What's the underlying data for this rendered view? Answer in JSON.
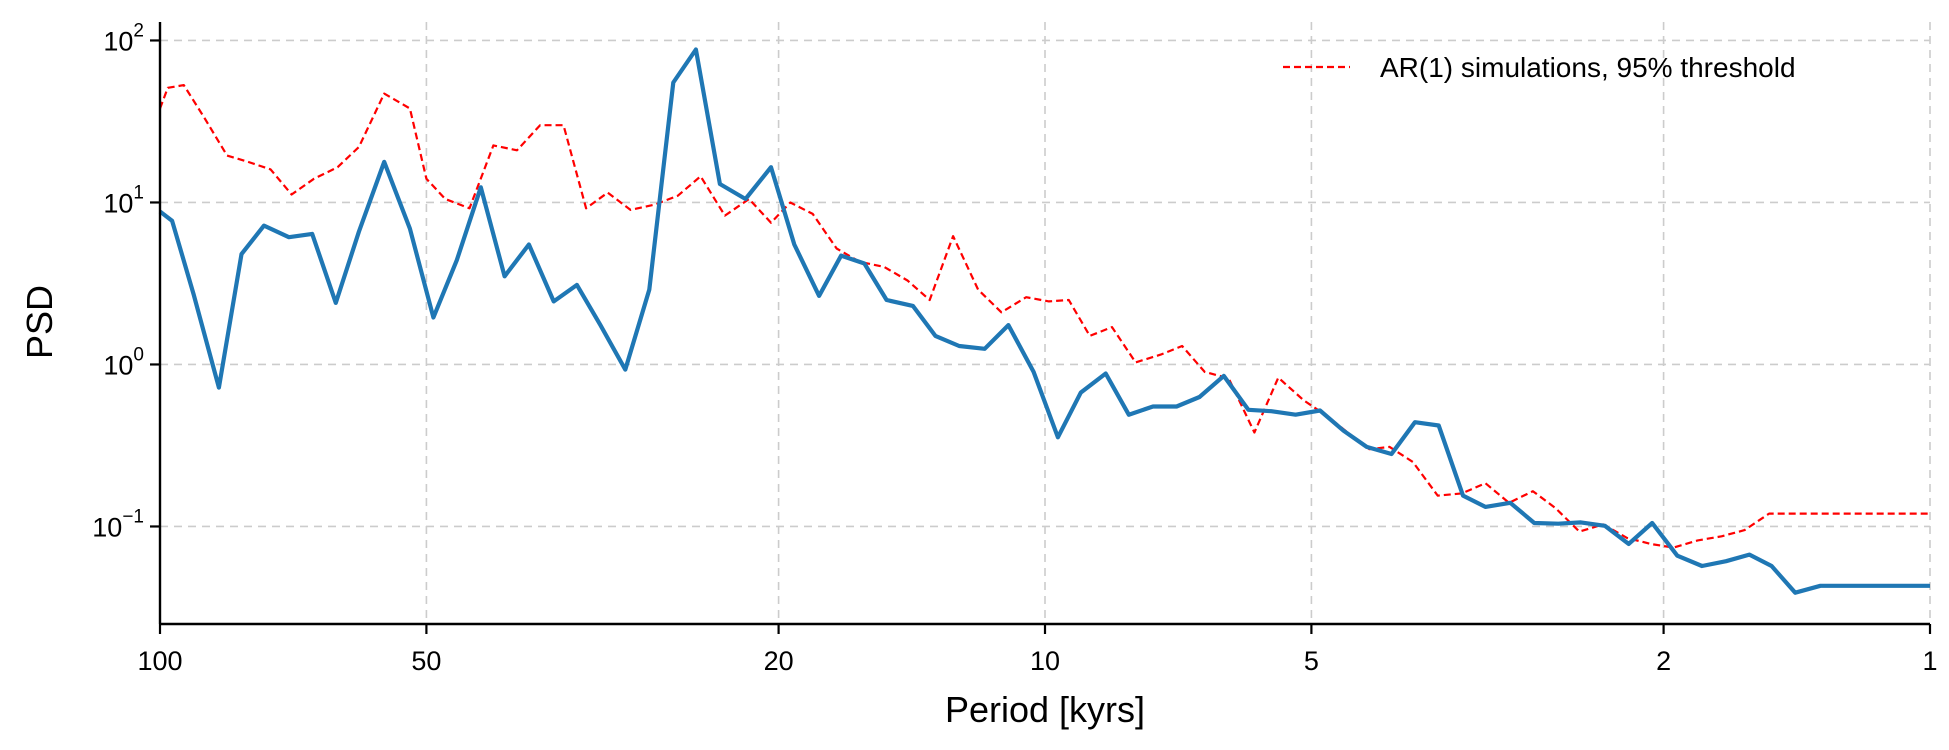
{
  "chart_data": {
    "type": "line",
    "xlabel": "Period [kyrs]",
    "ylabel": "PSD",
    "x_scale": "log",
    "x_reversed": true,
    "y_scale": "log",
    "xlim": [
      100,
      1
    ],
    "ylim": [
      0.025,
      130
    ],
    "grid": true,
    "legend_position": "top-right",
    "x_ticks": [
      {
        "value": 100,
        "label": "100"
      },
      {
        "value": 50,
        "label": "50"
      },
      {
        "value": 20,
        "label": "20"
      },
      {
        "value": 10,
        "label": "10"
      },
      {
        "value": 5,
        "label": "5"
      },
      {
        "value": 2,
        "label": "2"
      },
      {
        "value": 1,
        "label": "1"
      }
    ],
    "y_ticks": [
      {
        "value": 100,
        "base": "10",
        "exp": "2"
      },
      {
        "value": 10,
        "base": "10",
        "exp": "1"
      },
      {
        "value": 1,
        "base": "10",
        "exp": "0"
      },
      {
        "value": 0.1,
        "base": "10",
        "exp": "−1"
      }
    ],
    "series": [
      {
        "name": "",
        "color": "#1f77b4",
        "style": "solid",
        "x": [
          100,
          96.9,
          91.6,
          85.8,
          80.9,
          76.3,
          71.5,
          67.3,
          63.3,
          59.6,
          55.8,
          52.2,
          49.1,
          46.2,
          43.4,
          40.8,
          38.3,
          35.9,
          33.8,
          31.8,
          29.8,
          28.0,
          26.3,
          24.8,
          23.3,
          21.8,
          20.4,
          19.2,
          18.0,
          17.0,
          16.0,
          15.1,
          14.1,
          13.3,
          12.5,
          11.7,
          11.0,
          10.3,
          9.67,
          9.11,
          8.54,
          8.04,
          7.55,
          7.1,
          6.69,
          6.28,
          5.89,
          5.55,
          5.21,
          4.89,
          4.6,
          4.33,
          4.06,
          3.82,
          3.59,
          3.37,
          3.18,
          2.98,
          2.8,
          2.63,
          2.48,
          2.33,
          2.19,
          2.06,
          1.93,
          1.81,
          1.7,
          1.6,
          1.51,
          1.42,
          1.33,
          1.25,
          1.18,
          1.1,
          1.04,
          1.0
        ],
        "y": [
          8.8,
          7.7,
          2.7,
          0.72,
          4.8,
          7.2,
          6.1,
          6.4,
          2.4,
          6.6,
          17.8,
          6.9,
          1.95,
          4.4,
          12.4,
          3.5,
          5.5,
          2.45,
          3.1,
          1.75,
          0.93,
          2.9,
          55,
          88,
          13,
          10.5,
          16.5,
          5.5,
          2.65,
          4.7,
          4.2,
          2.5,
          2.3,
          1.5,
          1.3,
          1.25,
          1.75,
          0.9,
          0.355,
          0.67,
          0.88,
          0.49,
          0.55,
          0.55,
          0.63,
          0.85,
          0.525,
          0.515,
          0.49,
          0.52,
          0.39,
          0.31,
          0.28,
          0.44,
          0.42,
          0.155,
          0.132,
          0.14,
          0.105,
          0.104,
          0.106,
          0.101,
          0.078,
          0.105,
          0.066,
          0.057,
          0.061,
          0.067,
          0.057,
          0.039,
          0.043,
          0.043,
          0.043,
          0.043,
          0.043,
          0.043
        ]
      },
      {
        "name": "AR(1) simulations, 95% threshold",
        "color": "#ff0000",
        "style": "dashed",
        "x": [
          100,
          98.0,
          94.0,
          89.0,
          84.0,
          80.0,
          75.0,
          71.0,
          67.0,
          63.0,
          59.6,
          55.8,
          52.2,
          50.0,
          47.6,
          44.7,
          42.0,
          39.5,
          37.2,
          35.0,
          33.0,
          31.2,
          29.4,
          27.6,
          26.0,
          24.5,
          23.0,
          21.6,
          20.4,
          19.4,
          18.3,
          17.2,
          16.2,
          15.2,
          14.3,
          13.5,
          12.7,
          11.9,
          11.2,
          10.5,
          9.9,
          9.4,
          8.9,
          8.4,
          7.9,
          7.4,
          7.0,
          6.6,
          6.2,
          5.8,
          5.45,
          5.1,
          4.8,
          4.55,
          4.3,
          4.08,
          3.84,
          3.6,
          3.38,
          3.18,
          2.99,
          2.81,
          2.65,
          2.49,
          2.34,
          2.2,
          2.07,
          1.95,
          1.83,
          1.72,
          1.62,
          1.52,
          1.43,
          1.34,
          1.26,
          1.18,
          1.11,
          1.05,
          1.0
        ],
        "y": [
          38,
          51,
          53,
          33,
          19.5,
          18,
          16,
          11.2,
          14,
          16.5,
          22,
          47,
          38,
          14,
          10.5,
          9.2,
          22.5,
          21,
          30,
          30,
          9.2,
          11.5,
          9.0,
          9.7,
          11,
          14.5,
          8.3,
          10.5,
          7.5,
          10,
          8.5,
          5.2,
          4.3,
          4.0,
          3.3,
          2.5,
          6.2,
          2.9,
          2.1,
          2.6,
          2.45,
          2.5,
          1.5,
          1.7,
          1.03,
          1.15,
          1.3,
          0.9,
          0.82,
          0.38,
          0.83,
          0.6,
          0.48,
          0.38,
          0.3,
          0.31,
          0.25,
          0.155,
          0.16,
          0.185,
          0.14,
          0.165,
          0.13,
          0.093,
          0.103,
          0.085,
          0.078,
          0.074,
          0.082,
          0.087,
          0.095,
          0.12,
          0.12,
          0.12,
          0.12,
          0.12,
          0.12,
          0.12,
          0.12
        ]
      }
    ]
  }
}
